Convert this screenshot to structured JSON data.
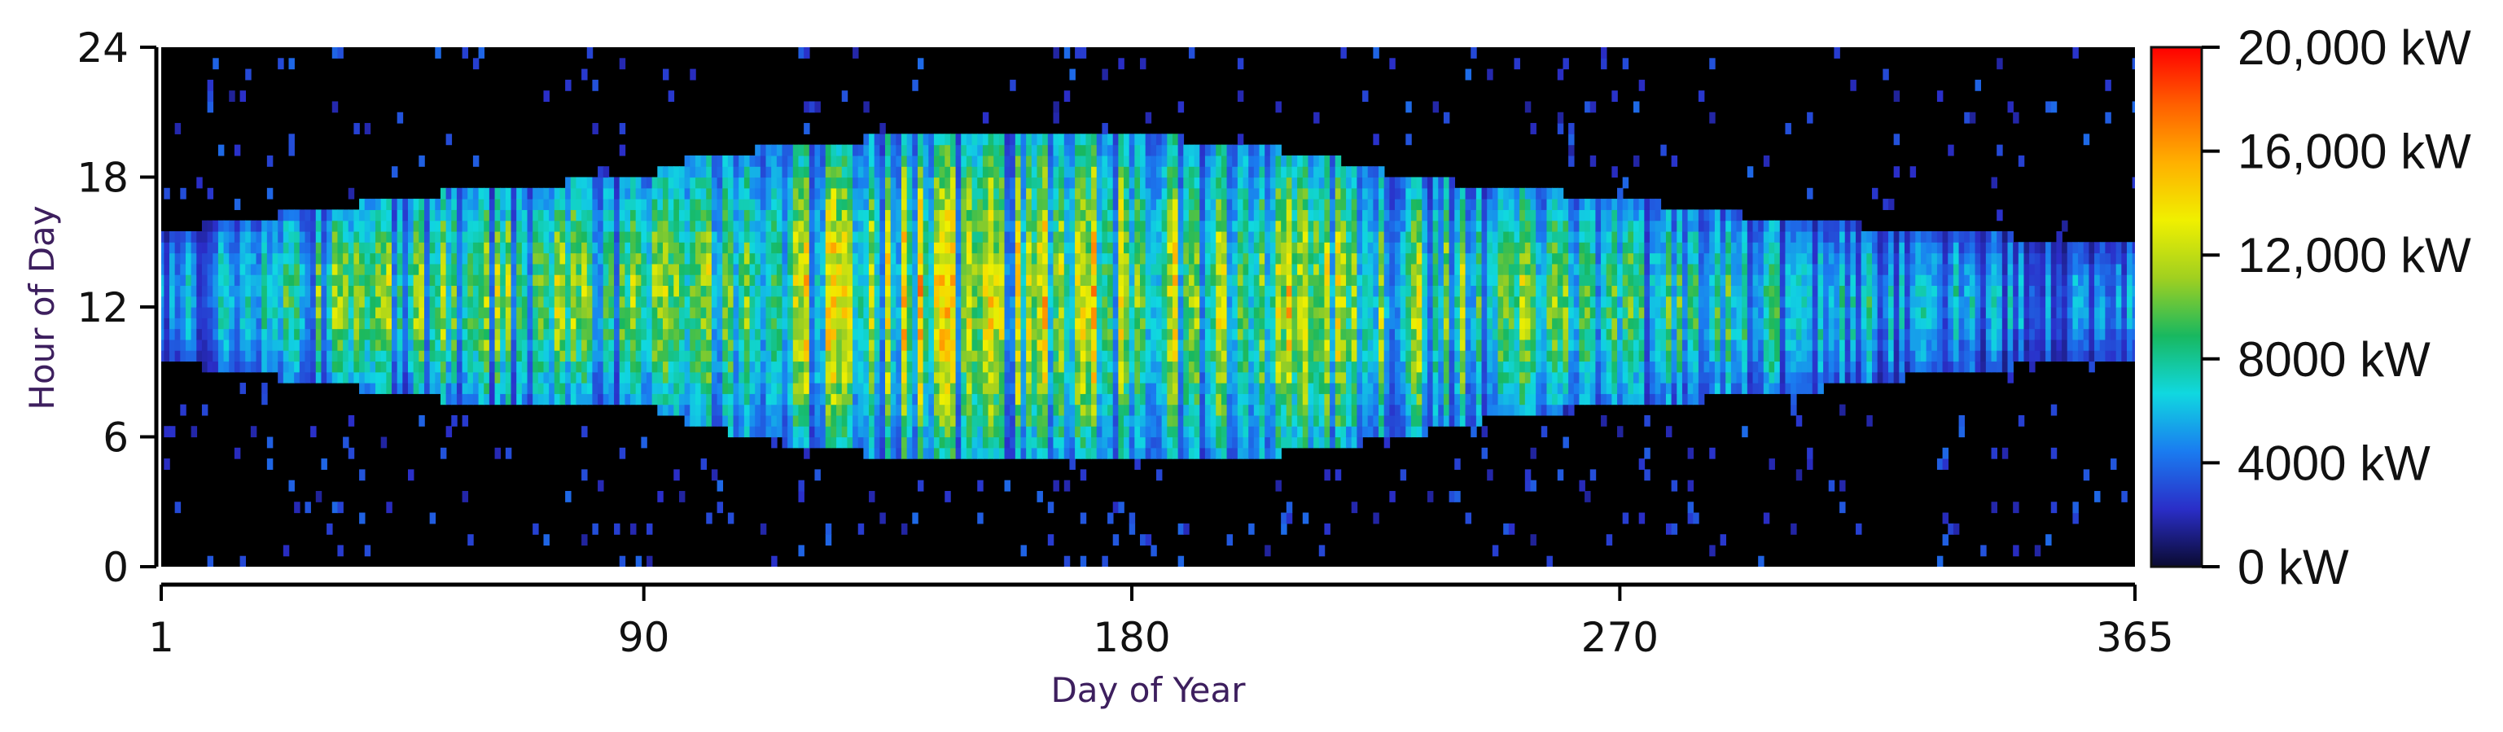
{
  "chart_data": {
    "type": "heatmap",
    "title": "",
    "xlabel": "Day of Year",
    "ylabel": "Hour of Day",
    "xlim": [
      1,
      365
    ],
    "ylim": [
      0,
      24
    ],
    "x_ticks": [
      "1",
      "90",
      "180",
      "270",
      "365"
    ],
    "x_tick_values": [
      1,
      90,
      180,
      270,
      365
    ],
    "y_ticks": [
      "0",
      "6",
      "12",
      "18",
      "24"
    ],
    "y_tick_values": [
      0,
      6,
      12,
      18,
      24
    ],
    "colorbar": {
      "min": 0,
      "max": 20000,
      "unit": "kW",
      "tick_values": [
        0,
        4000,
        8000,
        12000,
        16000,
        20000
      ],
      "tick_labels": [
        "0 kW",
        "4000 kW",
        "8000 kW",
        "12,000 kW",
        "16,000 kW",
        "20,000 kW"
      ],
      "colors": [
        "#0a0a30",
        "#2a2ec8",
        "#1a7cf0",
        "#10d8e0",
        "#18b860",
        "#a0d020",
        "#f0f000",
        "#ffb000",
        "#ff6000",
        "#ff0000"
      ]
    },
    "background_color": "#000000",
    "label_color": "#3d1f5e",
    "grid": false,
    "daily_profile": {
      "day_start": [
        1,
        15,
        30,
        60,
        90,
        100,
        120,
        140,
        160,
        180,
        200,
        215,
        230,
        250,
        270,
        300,
        330,
        355
      ],
      "sunrise_hour": [
        9.5,
        9.0,
        8.5,
        7.5,
        7.5,
        6.5,
        5.5,
        5.0,
        5.0,
        5.0,
        5.0,
        5.5,
        6.0,
        7.0,
        7.5,
        8.0,
        9.0,
        9.5
      ],
      "sunset_hour": [
        15.5,
        16.0,
        16.5,
        17.5,
        18.0,
        19.0,
        19.5,
        20.0,
        20.0,
        20.0,
        19.5,
        19.0,
        18.0,
        17.5,
        17.0,
        16.0,
        15.5,
        15.0
      ],
      "typical_peak_kW": [
        6000,
        8000,
        10000,
        11000,
        11000,
        12000,
        12500,
        13000,
        13000,
        12500,
        12000,
        11500,
        11000,
        10500,
        9500,
        8000,
        6500,
        5500
      ]
    }
  }
}
